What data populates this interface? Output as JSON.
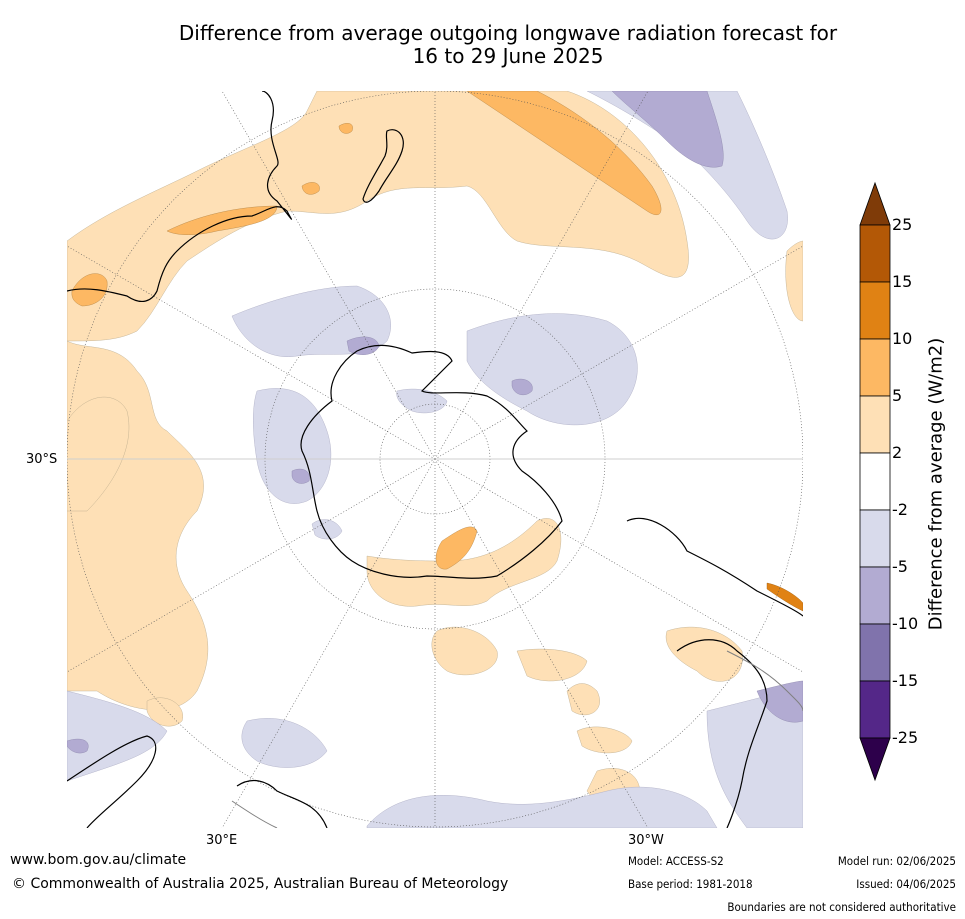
{
  "title": {
    "line1": "Difference from average outgoing longwave radiation forecast for",
    "line2": "16 to 29 June 2025"
  },
  "map": {
    "projection": "south-polar-stereographic",
    "labels": {
      "lat": "30°S",
      "lon_left": "30°E",
      "lon_right": "30°W"
    },
    "colors": {
      "ocean_bg": "#ffffff",
      "coast": "#000000",
      "border": "#808080",
      "grid": "#555555"
    }
  },
  "colorbar": {
    "title": "Difference from average (W/m2)",
    "ticks": [
      "25",
      "15",
      "10",
      "5",
      "2",
      "-2",
      "-5",
      "-10",
      "-15",
      "-25"
    ],
    "bands": [
      {
        "range": "15 to 25",
        "color": "#b35806"
      },
      {
        "range": "10 to 15",
        "color": "#e08214"
      },
      {
        "range": "5 to 10",
        "color": "#fdb863"
      },
      {
        "range": "2 to 5",
        "color": "#fee0b6"
      },
      {
        "range": "-2 to 2",
        "color": "#ffffff"
      },
      {
        "range": "-5 to -2",
        "color": "#d8daeb"
      },
      {
        "range": "-10 to -5",
        "color": "#b2abd2"
      },
      {
        "range": "-15 to -10",
        "color": "#8073ac"
      },
      {
        "range": "-25 to -15",
        "color": "#542788"
      }
    ],
    "extend_max_color": "#7f3b08",
    "extend_min_color": "#2d004b"
  },
  "footer": {
    "url": "www.bom.gov.au/climate",
    "copyright": "© Commonwealth of Australia 2025, Australian Bureau of Meteorology",
    "model": "Model: ACCESS-S2",
    "base_period": "Base period: 1981-2018",
    "model_run": "Model run: 02/06/2025",
    "issued": "Issued: 04/06/2025",
    "disclaimer": "Boundaries are not considered authoritative"
  }
}
